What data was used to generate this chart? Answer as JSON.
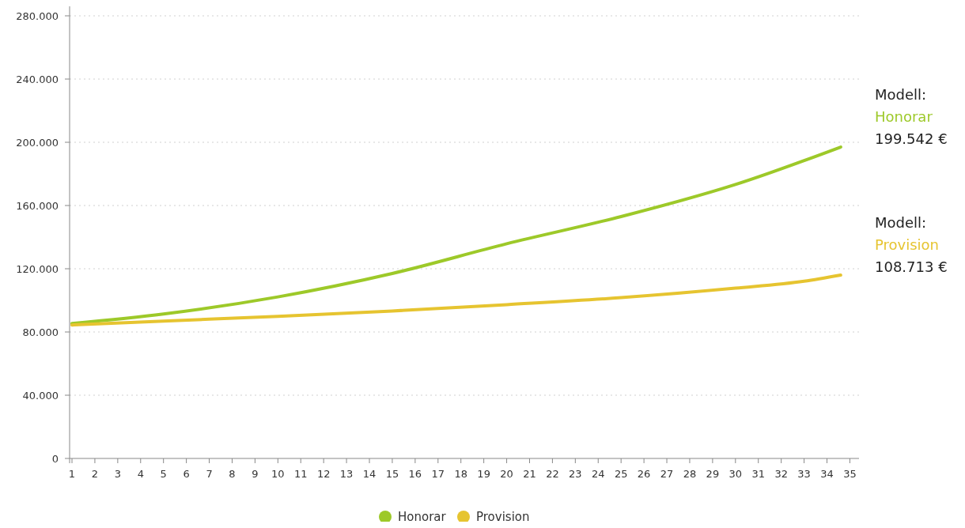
{
  "chart_data": {
    "type": "line",
    "xlim": [
      1,
      35.4
    ],
    "xticks": [
      1,
      2,
      3,
      4,
      5,
      6,
      7,
      8,
      9,
      10,
      11,
      12,
      13,
      14,
      15,
      16,
      17,
      18,
      19,
      20,
      21,
      22,
      23,
      24,
      25,
      26,
      27,
      28,
      29,
      30,
      31,
      32,
      33,
      34,
      35
    ],
    "ylim": [
      0,
      280000
    ],
    "yticks": [
      {
        "value": 0,
        "label": "0"
      },
      {
        "value": 40000,
        "label": "40.000"
      },
      {
        "value": 80000,
        "label": "80.000"
      },
      {
        "value": 120000,
        "label": "120.000"
      },
      {
        "value": 160000,
        "label": "160.000"
      },
      {
        "value": 200000,
        "label": "200.000"
      },
      {
        "value": 240000,
        "label": "240.000"
      },
      {
        "value": 280000,
        "label": "280.000"
      }
    ],
    "grid": "y",
    "legend": "bottom",
    "line_style": "solid",
    "series": [
      {
        "name": "Honorar",
        "color": "#9dc929",
        "x": [
          1,
          5,
          10,
          15,
          20,
          25,
          30,
          34.6
        ],
        "values": [
          85400,
          91400,
          102200,
          117000,
          135800,
          153000,
          173300,
          197000
        ]
      },
      {
        "name": "Provision",
        "color": "#e6c430",
        "x": [
          1,
          5,
          10,
          15,
          20,
          25,
          30,
          33,
          34.6
        ],
        "values": [
          84400,
          86900,
          89900,
          93300,
          97300,
          101700,
          107700,
          112100,
          116000
        ]
      }
    ],
    "annotations": [
      "Modell:",
      "Honorar",
      "199.542 €",
      "Modell:",
      "Provision",
      "108.713 €"
    ]
  }
}
